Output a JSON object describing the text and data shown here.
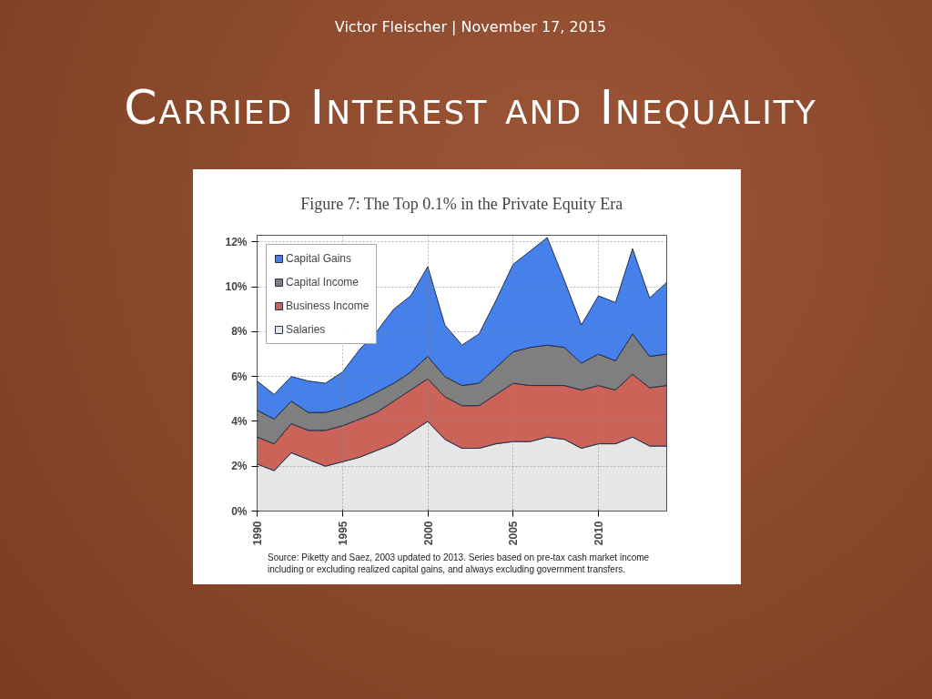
{
  "chart_data": {
    "type": "area",
    "stacked": true,
    "title": "Figure 7: The Top 0.1% in the Private Equity Era",
    "annotations": [
      "Victor Fleischer | November 17, 2015",
      "Carried Interest and Inequality",
      "Source: Piketty and Saez, 2003 updated to 2013. Series based on pre-tax cash market income including or excluding realized capital gains, and always excluding government transfers."
    ],
    "x": [
      1990,
      1991,
      1992,
      1993,
      1994,
      1995,
      1996,
      1997,
      1998,
      1999,
      2000,
      2001,
      2002,
      2003,
      2004,
      2005,
      2006,
      2007,
      2008,
      2009,
      2010,
      2011,
      2012,
      2013,
      2014
    ],
    "series": [
      {
        "name": "Salaries",
        "color": "#e6e6e6",
        "values": [
          2.1,
          1.8,
          2.6,
          2.3,
          2.0,
          2.2,
          2.4,
          2.7,
          3.0,
          3.5,
          4.0,
          3.2,
          2.8,
          2.8,
          3.0,
          3.1,
          3.1,
          3.3,
          3.2,
          2.8,
          3.0,
          3.0,
          3.3,
          2.9,
          2.9
        ]
      },
      {
        "name": "Business Income",
        "color": "#cc6358",
        "values": [
          1.2,
          1.2,
          1.3,
          1.3,
          1.6,
          1.6,
          1.7,
          1.7,
          1.9,
          1.9,
          1.9,
          1.9,
          1.9,
          1.9,
          2.2,
          2.6,
          2.5,
          2.3,
          2.4,
          2.6,
          2.6,
          2.4,
          2.8,
          2.6,
          2.7
        ]
      },
      {
        "name": "Capital Income",
        "color": "#7f7f7f",
        "values": [
          1.2,
          1.1,
          1.0,
          0.8,
          0.8,
          0.8,
          0.8,
          0.9,
          0.8,
          0.8,
          1.0,
          0.9,
          0.9,
          1.0,
          1.2,
          1.4,
          1.7,
          1.8,
          1.7,
          1.2,
          1.4,
          1.3,
          1.8,
          1.4,
          1.4
        ]
      },
      {
        "name": "Capital Gains",
        "color": "#4680ea",
        "values": [
          1.3,
          1.1,
          1.1,
          1.4,
          1.3,
          1.6,
          2.3,
          2.7,
          3.3,
          3.4,
          4.0,
          2.3,
          1.8,
          2.2,
          3.0,
          3.9,
          4.3,
          4.8,
          3.0,
          1.7,
          2.6,
          2.6,
          3.8,
          2.6,
          3.2
        ]
      }
    ],
    "xlim": [
      1990,
      2014
    ],
    "xticks": [
      1990,
      1995,
      2000,
      2005,
      2010
    ],
    "ylim": [
      0,
      12.3
    ],
    "yticks": [
      {
        "value": 0,
        "label": "0%"
      },
      {
        "value": 2,
        "label": "2%"
      },
      {
        "value": 4,
        "label": "4%"
      },
      {
        "value": 6,
        "label": "6%"
      },
      {
        "value": 8,
        "label": "8%"
      },
      {
        "value": 10,
        "label": "10%"
      },
      {
        "value": 12,
        "label": "12%"
      }
    ],
    "grid": true,
    "legend": "top left"
  }
}
